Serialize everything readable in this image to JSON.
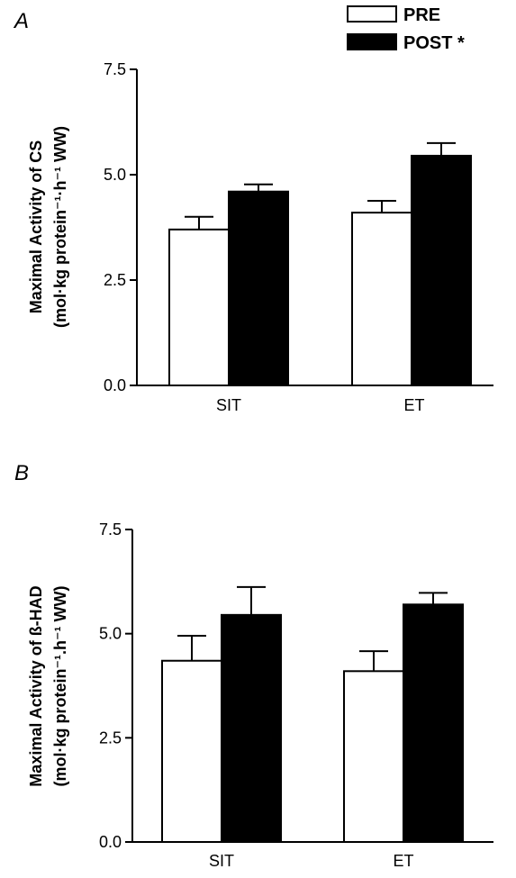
{
  "panels": [
    {
      "letter": "A"
    },
    {
      "letter": "B"
    }
  ],
  "legend": [
    {
      "label": "PRE",
      "color": "#ffffff"
    },
    {
      "label": "POST *",
      "color": "#000000"
    }
  ],
  "chart_data": [
    {
      "type": "bar",
      "categories": [
        "SIT",
        "ET"
      ],
      "series": [
        {
          "name": "PRE",
          "values": [
            3.7,
            4.1
          ],
          "errors": [
            0.3,
            0.28
          ]
        },
        {
          "name": "POST *",
          "values": [
            4.6,
            5.45
          ],
          "errors": [
            0.17,
            0.3
          ]
        }
      ],
      "ylabel_line1": "Maximal Activity of CS",
      "ylabel_line2": "(mol·kg protein⁻¹·h⁻¹ WW)",
      "yticks": [
        "0.0",
        "2.5",
        "5.0",
        "7.5"
      ],
      "ylim": [
        0,
        7.5
      ]
    },
    {
      "type": "bar",
      "categories": [
        "SIT",
        "ET"
      ],
      "series": [
        {
          "name": "PRE",
          "values": [
            4.35,
            4.1
          ],
          "errors": [
            0.6,
            0.48
          ]
        },
        {
          "name": "POST *",
          "values": [
            5.45,
            5.7
          ],
          "errors": [
            0.67,
            0.28
          ]
        }
      ],
      "ylabel_line1": "Maximal Activity of ß-HAD",
      "ylabel_line2": "(mol·kg protein⁻¹.h⁻¹ WW)",
      "yticks": [
        "0.0",
        "2.5",
        "5.0",
        "7.5"
      ],
      "ylim": [
        0,
        7.5
      ]
    }
  ]
}
